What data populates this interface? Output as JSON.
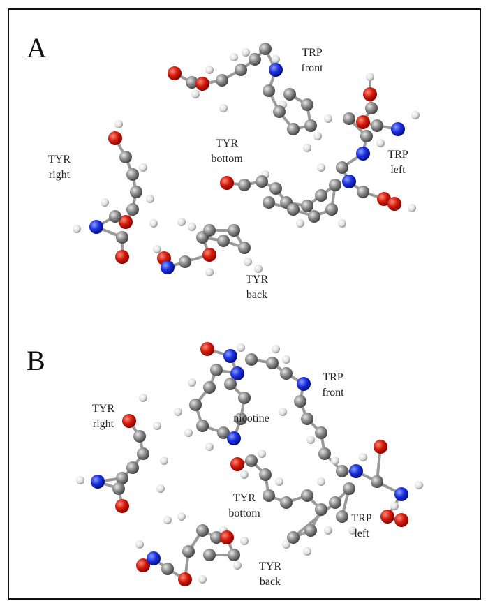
{
  "panels": [
    {
      "label": "A",
      "annotations": [
        {
          "lines": [
            "TRP",
            "front"
          ]
        },
        {
          "lines": [
            "TYR",
            "bottom"
          ]
        },
        {
          "lines": [
            "TRP",
            "left"
          ]
        },
        {
          "lines": [
            "TYR",
            "right"
          ]
        },
        {
          "lines": [
            "TYR",
            "back"
          ]
        }
      ]
    },
    {
      "label": "B",
      "annotations": [
        {
          "lines": [
            "TRP",
            "front"
          ]
        },
        {
          "lines": [
            "TYR",
            "right"
          ]
        },
        {
          "lines": [
            "nicotine"
          ]
        },
        {
          "lines": [
            "TYR",
            "bottom"
          ]
        },
        {
          "lines": [
            "TRP",
            "left"
          ]
        },
        {
          "lines": [
            "TYR",
            "back"
          ]
        }
      ]
    }
  ]
}
